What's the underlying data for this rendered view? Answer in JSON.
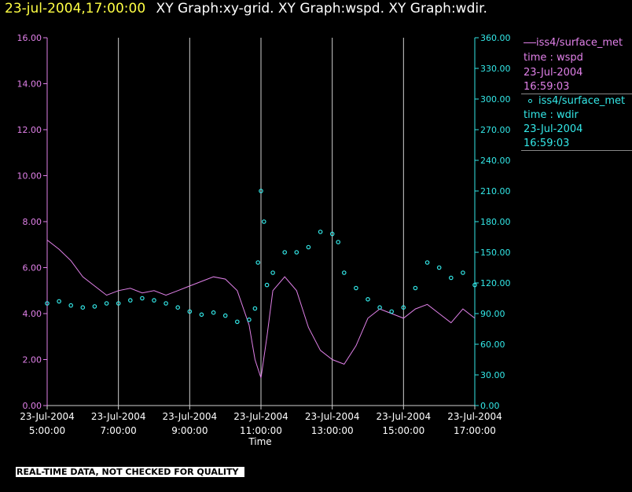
{
  "title": {
    "time": "23-jul-2004,17:00:00",
    "graphs": "XY Graph:xy-grid.  XY Graph:wspd.  XY Graph:wdir."
  },
  "colors": {
    "wspd": "#e080e8",
    "wdir": "#33e8e8",
    "axis": "#cfcfcf",
    "grid": "#cfcfcf"
  },
  "legend": [
    {
      "marker": "line-swatch",
      "lines": [
        "iss4/surface_met",
        "time : wspd",
        "23-Jul-2004",
        "16:59:03"
      ]
    },
    {
      "marker": "circle-swatch",
      "lines": [
        "iss4/surface_met",
        "time : wdir",
        "23-Jul-2004",
        "16:59:03"
      ]
    }
  ],
  "footer": "REAL-TIME DATA, NOT CHECKED FOR QUALITY",
  "chart_data": {
    "type": "line",
    "xlabel": "Time",
    "xlim": [
      "05:00",
      "17:00"
    ],
    "x_ticks": [
      {
        "t": "05:00",
        "date": "23-Jul-2004",
        "time": "5:00:00"
      },
      {
        "t": "07:00",
        "date": "23-Jul-2004",
        "time": "7:00:00"
      },
      {
        "t": "09:00",
        "date": "23-Jul-2004",
        "time": "9:00:00"
      },
      {
        "t": "11:00",
        "date": "23-Jul-2004",
        "time": "11:00:00"
      },
      {
        "t": "13:00",
        "date": "23-Jul-2004",
        "time": "13:00:00"
      },
      {
        "t": "15:00",
        "date": "23-Jul-2004",
        "time": "15:00:00"
      },
      {
        "t": "17:00",
        "date": "23-Jul-2004",
        "time": "17:00:00"
      }
    ],
    "y_left": {
      "lim": [
        0,
        16
      ],
      "ticks": [
        "0.00",
        "2.00",
        "4.00",
        "6.00",
        "8.00",
        "10.00",
        "12.00",
        "14.00",
        "16.00"
      ]
    },
    "y_right": {
      "lim": [
        0,
        360
      ],
      "ticks": [
        "0.00",
        "30.00",
        "60.00",
        "90.00",
        "120.00",
        "150.00",
        "180.00",
        "210.00",
        "240.00",
        "270.00",
        "300.00",
        "330.00",
        "360.00"
      ]
    },
    "grid": "vertical",
    "series": [
      {
        "name": "iss4/surface_met time : wspd",
        "axis": "left",
        "style": "line",
        "x": [
          "05:00",
          "05:20",
          "05:40",
          "06:00",
          "06:20",
          "06:40",
          "07:00",
          "07:20",
          "07:40",
          "08:00",
          "08:20",
          "08:40",
          "09:00",
          "09:20",
          "09:40",
          "10:00",
          "10:20",
          "10:40",
          "10:50",
          "11:00",
          "11:10",
          "11:20",
          "11:40",
          "12:00",
          "12:20",
          "12:40",
          "13:00",
          "13:20",
          "13:40",
          "14:00",
          "14:20",
          "14:40",
          "15:00",
          "15:20",
          "15:40",
          "16:00",
          "16:20",
          "16:40",
          "17:00"
        ],
        "y": [
          7.2,
          6.8,
          6.3,
          5.6,
          5.2,
          4.8,
          5.0,
          5.1,
          4.9,
          5.0,
          4.8,
          5.0,
          5.2,
          5.4,
          5.6,
          5.5,
          5.0,
          3.5,
          2.0,
          1.2,
          3.0,
          5.0,
          5.6,
          5.0,
          3.4,
          2.4,
          2.0,
          1.8,
          2.6,
          3.8,
          4.2,
          4.0,
          3.8,
          4.2,
          4.4,
          4.0,
          3.6,
          4.2,
          3.8
        ]
      },
      {
        "name": "iss4/surface_met time : wdir",
        "axis": "right",
        "style": "markers",
        "x": [
          "05:00",
          "05:20",
          "05:40",
          "06:00",
          "06:20",
          "06:40",
          "07:00",
          "07:20",
          "07:40",
          "08:00",
          "08:20",
          "08:40",
          "09:00",
          "09:20",
          "09:40",
          "10:00",
          "10:20",
          "10:40",
          "10:50",
          "10:55",
          "11:00",
          "11:05",
          "11:10",
          "11:20",
          "11:40",
          "12:00",
          "12:20",
          "12:40",
          "13:00",
          "13:10",
          "13:20",
          "13:40",
          "14:00",
          "14:20",
          "14:40",
          "15:00",
          "15:20",
          "15:40",
          "16:00",
          "16:20",
          "16:40",
          "17:00"
        ],
        "y": [
          100,
          102,
          98,
          96,
          97,
          100,
          100,
          103,
          105,
          103,
          100,
          96,
          92,
          89,
          91,
          88,
          82,
          84,
          95,
          140,
          210,
          180,
          118,
          130,
          150,
          150,
          155,
          170,
          168,
          160,
          130,
          115,
          104,
          96,
          92,
          96,
          115,
          140,
          135,
          125,
          130,
          118
        ]
      }
    ]
  }
}
